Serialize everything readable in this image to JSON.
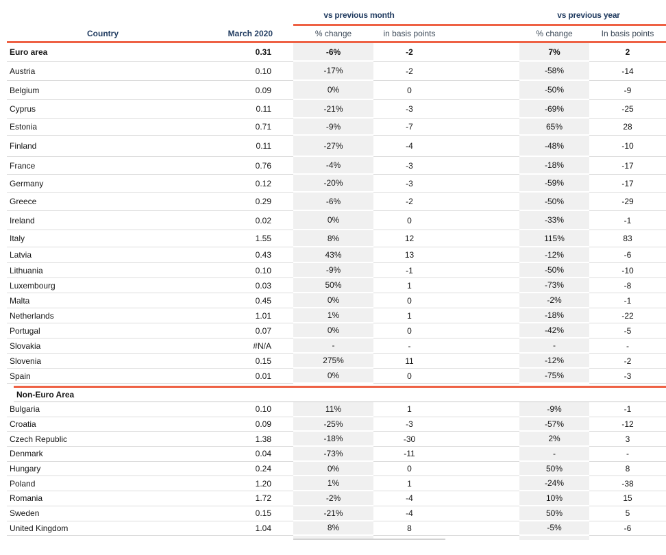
{
  "chart_data": {
    "type": "table",
    "column_groups": [
      "vs previous month",
      "vs previous year"
    ],
    "columns": [
      "Country",
      "March 2020",
      "% change",
      "in basis points",
      "% change",
      "In basis points"
    ],
    "colors": {
      "accent_orange": "#ee6144",
      "header_navy": "#1f3a5f",
      "column_shade": "#f0f0f0"
    },
    "sections": [
      {
        "rows": [
          {
            "country": "Euro area",
            "march": "0.31",
            "pm_change": "-6%",
            "pm_bp": "-2",
            "py_change": "7%",
            "py_bp": "2",
            "bold": true
          },
          {
            "country": "Austria",
            "march": "0.10",
            "pm_change": "-17%",
            "pm_bp": "-2",
            "py_change": "-58%",
            "py_bp": "-14"
          },
          {
            "country": "Belgium",
            "march": "0.09",
            "pm_change": "0%",
            "pm_bp": "0",
            "py_change": "-50%",
            "py_bp": "-9"
          },
          {
            "country": "Cyprus",
            "march": "0.11",
            "pm_change": "-21%",
            "pm_bp": "-3",
            "py_change": "-69%",
            "py_bp": "-25"
          },
          {
            "country": "Estonia",
            "march": "0.71",
            "pm_change": "-9%",
            "pm_bp": "-7",
            "py_change": "65%",
            "py_bp": "28"
          },
          {
            "country": "Finland",
            "march": "0.11",
            "pm_change": "-27%",
            "pm_bp": "-4",
            "py_change": "-48%",
            "py_bp": "-10"
          },
          {
            "country": "France",
            "march": "0.76",
            "pm_change": "-4%",
            "pm_bp": "-3",
            "py_change": "-18%",
            "py_bp": "-17"
          },
          {
            "country": "Germany",
            "march": "0.12",
            "pm_change": "-20%",
            "pm_bp": "-3",
            "py_change": "-59%",
            "py_bp": "-17"
          },
          {
            "country": "Greece",
            "march": "0.29",
            "pm_change": "-6%",
            "pm_bp": "-2",
            "py_change": "-50%",
            "py_bp": "-29"
          },
          {
            "country": "Ireland",
            "march": "0.02",
            "pm_change": "0%",
            "pm_bp": "0",
            "py_change": "-33%",
            "py_bp": "-1"
          },
          {
            "country": "Italy",
            "march": "1.55",
            "pm_change": "8%",
            "pm_bp": "12",
            "py_change": "115%",
            "py_bp": "83"
          },
          {
            "country": "Latvia",
            "march": "0.43",
            "pm_change": "43%",
            "pm_bp": "13",
            "py_change": "-12%",
            "py_bp": "-6"
          },
          {
            "country": "Lithuania",
            "march": "0.10",
            "pm_change": "-9%",
            "pm_bp": "-1",
            "py_change": "-50%",
            "py_bp": "-10"
          },
          {
            "country": "Luxembourg",
            "march": "0.03",
            "pm_change": "50%",
            "pm_bp": "1",
            "py_change": "-73%",
            "py_bp": "-8"
          },
          {
            "country": "Malta",
            "march": "0.45",
            "pm_change": "0%",
            "pm_bp": "0",
            "py_change": "-2%",
            "py_bp": "-1"
          },
          {
            "country": "Netherlands",
            "march": "1.01",
            "pm_change": "1%",
            "pm_bp": "1",
            "py_change": "-18%",
            "py_bp": "-22"
          },
          {
            "country": "Portugal",
            "march": "0.07",
            "pm_change": "0%",
            "pm_bp": "0",
            "py_change": "-42%",
            "py_bp": "-5"
          },
          {
            "country": "Slovakia",
            "march": "#N/A",
            "pm_change": "-",
            "pm_bp": "-",
            "py_change": "-",
            "py_bp": "-"
          },
          {
            "country": "Slovenia",
            "march": "0.15",
            "pm_change": "275%",
            "pm_bp": "11",
            "py_change": "-12%",
            "py_bp": "-2"
          },
          {
            "country": "Spain",
            "march": "0.01",
            "pm_change": "0%",
            "pm_bp": "0",
            "py_change": "-75%",
            "py_bp": "-3"
          }
        ]
      },
      {
        "label": "Non-Euro Area",
        "rows": [
          {
            "country": "Bulgaria",
            "march": "0.10",
            "pm_change": "11%",
            "pm_bp": "1",
            "py_change": "-9%",
            "py_bp": "-1"
          },
          {
            "country": "Croatia",
            "march": "0.09",
            "pm_change": "-25%",
            "pm_bp": "-3",
            "py_change": "-57%",
            "py_bp": "-12"
          },
          {
            "country": "Czech Republic",
            "march": "1.38",
            "pm_change": "-18%",
            "pm_bp": "-30",
            "py_change": "2%",
            "py_bp": "3"
          },
          {
            "country": "Denmark",
            "march": "0.04",
            "pm_change": "-73%",
            "pm_bp": "-11",
            "py_change": "-",
            "py_bp": "-"
          },
          {
            "country": "Hungary",
            "march": "0.24",
            "pm_change": "0%",
            "pm_bp": "0",
            "py_change": "50%",
            "py_bp": "8"
          },
          {
            "country": "Poland",
            "march": "1.20",
            "pm_change": "1%",
            "pm_bp": "1",
            "py_change": "-24%",
            "py_bp": "-38"
          },
          {
            "country": "Romania",
            "march": "1.72",
            "pm_change": "-2%",
            "pm_bp": "-4",
            "py_change": "10%",
            "py_bp": "15"
          },
          {
            "country": "Sweden",
            "march": "0.15",
            "pm_change": "-21%",
            "pm_bp": "-4",
            "py_change": "50%",
            "py_bp": "5"
          },
          {
            "country": "United Kingdom",
            "march": "1.04",
            "pm_change": "8%",
            "pm_bp": "8",
            "py_change": "-5%",
            "py_bp": "-6"
          }
        ]
      }
    ]
  }
}
